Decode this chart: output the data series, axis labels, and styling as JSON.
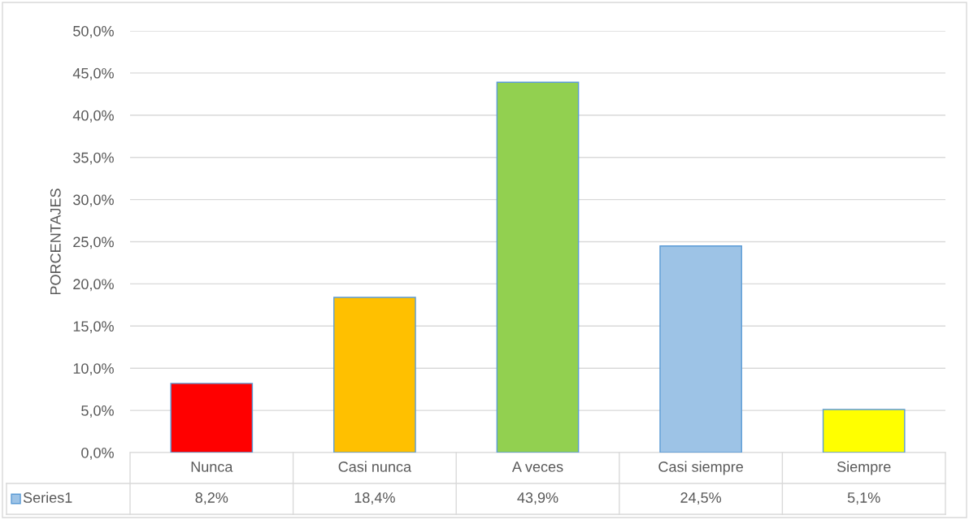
{
  "chart_data": {
    "type": "bar",
    "ylabel": "PORCENTAJES",
    "categories": [
      "Nunca",
      "Casi nunca",
      "A veces",
      "Casi siempre",
      "Siempre"
    ],
    "series": [
      {
        "name": "Series1",
        "color": "#9dc3e6",
        "colors": [
          "#ff0000",
          "#ffc000",
          "#92d050",
          "#9dc3e6",
          "#ffff00"
        ],
        "values": [
          8.2,
          18.4,
          43.9,
          24.5,
          5.1
        ],
        "value_labels": [
          "8,2%",
          "18,4%",
          "43,9%",
          "24,5%",
          "5,1%"
        ]
      }
    ],
    "ylim": [
      0,
      50
    ],
    "yticks": [
      {
        "value": 0,
        "label": "0,0%"
      },
      {
        "value": 5,
        "label": "5,0%"
      },
      {
        "value": 10,
        "label": "10,0%"
      },
      {
        "value": 15,
        "label": "15,0%"
      },
      {
        "value": 20,
        "label": "20,0%"
      },
      {
        "value": 25,
        "label": "25,0%"
      },
      {
        "value": 30,
        "label": "30,0%"
      },
      {
        "value": 35,
        "label": "35,0%"
      },
      {
        "value": 40,
        "label": "40,0%"
      },
      {
        "value": 45,
        "label": "45,0%"
      },
      {
        "value": 50,
        "label": "50,0%"
      }
    ],
    "grid": "y"
  }
}
